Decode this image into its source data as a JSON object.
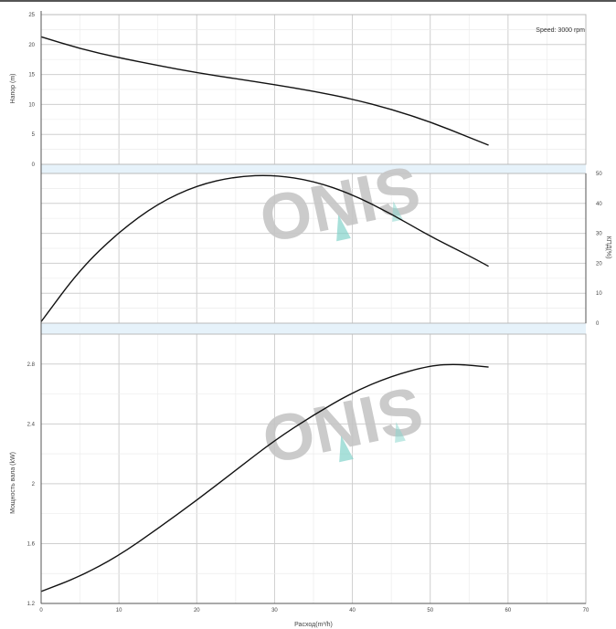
{
  "chart_data": [
    {
      "type": "line",
      "ylabel": "Напор (m)",
      "y_ticks": [
        "0",
        "5",
        "10",
        "15",
        "20",
        "25"
      ],
      "ylim": [
        0,
        25
      ],
      "xlim": [
        0,
        70
      ],
      "annotation": "Speed: 3000 rpm",
      "grid": true,
      "x": [
        0,
        5,
        10,
        15,
        20,
        25,
        30,
        35,
        40,
        45,
        50,
        55,
        57.5
      ],
      "y": [
        21.3,
        19.3,
        17.8,
        16.5,
        15.3,
        14.3,
        13.3,
        12.2,
        10.9,
        9.2,
        7.1,
        4.5,
        3.2
      ]
    },
    {
      "type": "line",
      "ylabel": "КПД(%)",
      "y_ticks": [
        "0",
        "10",
        "20",
        "30",
        "40",
        "50"
      ],
      "ylim": [
        0,
        50
      ],
      "xlim": [
        0,
        70
      ],
      "grid": true,
      "x": [
        0,
        5,
        10,
        15,
        20,
        25,
        30,
        35,
        40,
        45,
        50,
        55,
        57.5
      ],
      "y": [
        0.5,
        18,
        30.5,
        40,
        46,
        49,
        49.5,
        47.5,
        43,
        36.5,
        29,
        22.5,
        19
      ]
    },
    {
      "type": "line",
      "ylabel": "Мощность вала (kW)",
      "xlabel": "Расход(m³/h)",
      "x_ticks": [
        "0",
        "10",
        "20",
        "30",
        "40",
        "50",
        "60",
        "70"
      ],
      "y_ticks": [
        "1.2",
        "1.6",
        "2",
        "2.4",
        "2.8"
      ],
      "ylim": [
        1.2,
        3.0
      ],
      "xlim": [
        0,
        70
      ],
      "grid": true,
      "x": [
        0,
        5,
        10,
        15,
        20,
        25,
        30,
        35,
        40,
        45,
        50,
        53.5,
        57.5
      ],
      "y": [
        1.28,
        1.38,
        1.52,
        1.7,
        1.89,
        2.09,
        2.29,
        2.46,
        2.61,
        2.72,
        2.79,
        2.8,
        2.78
      ]
    }
  ],
  "watermark": {
    "text": "ONIS",
    "accent_color": "#7fd1c8",
    "text_color": "#c6c6c6"
  },
  "colors": {
    "curve": "#111111",
    "grid_major": "#cfcfcf",
    "band": "#e6f2fa",
    "axis": "#555555"
  }
}
